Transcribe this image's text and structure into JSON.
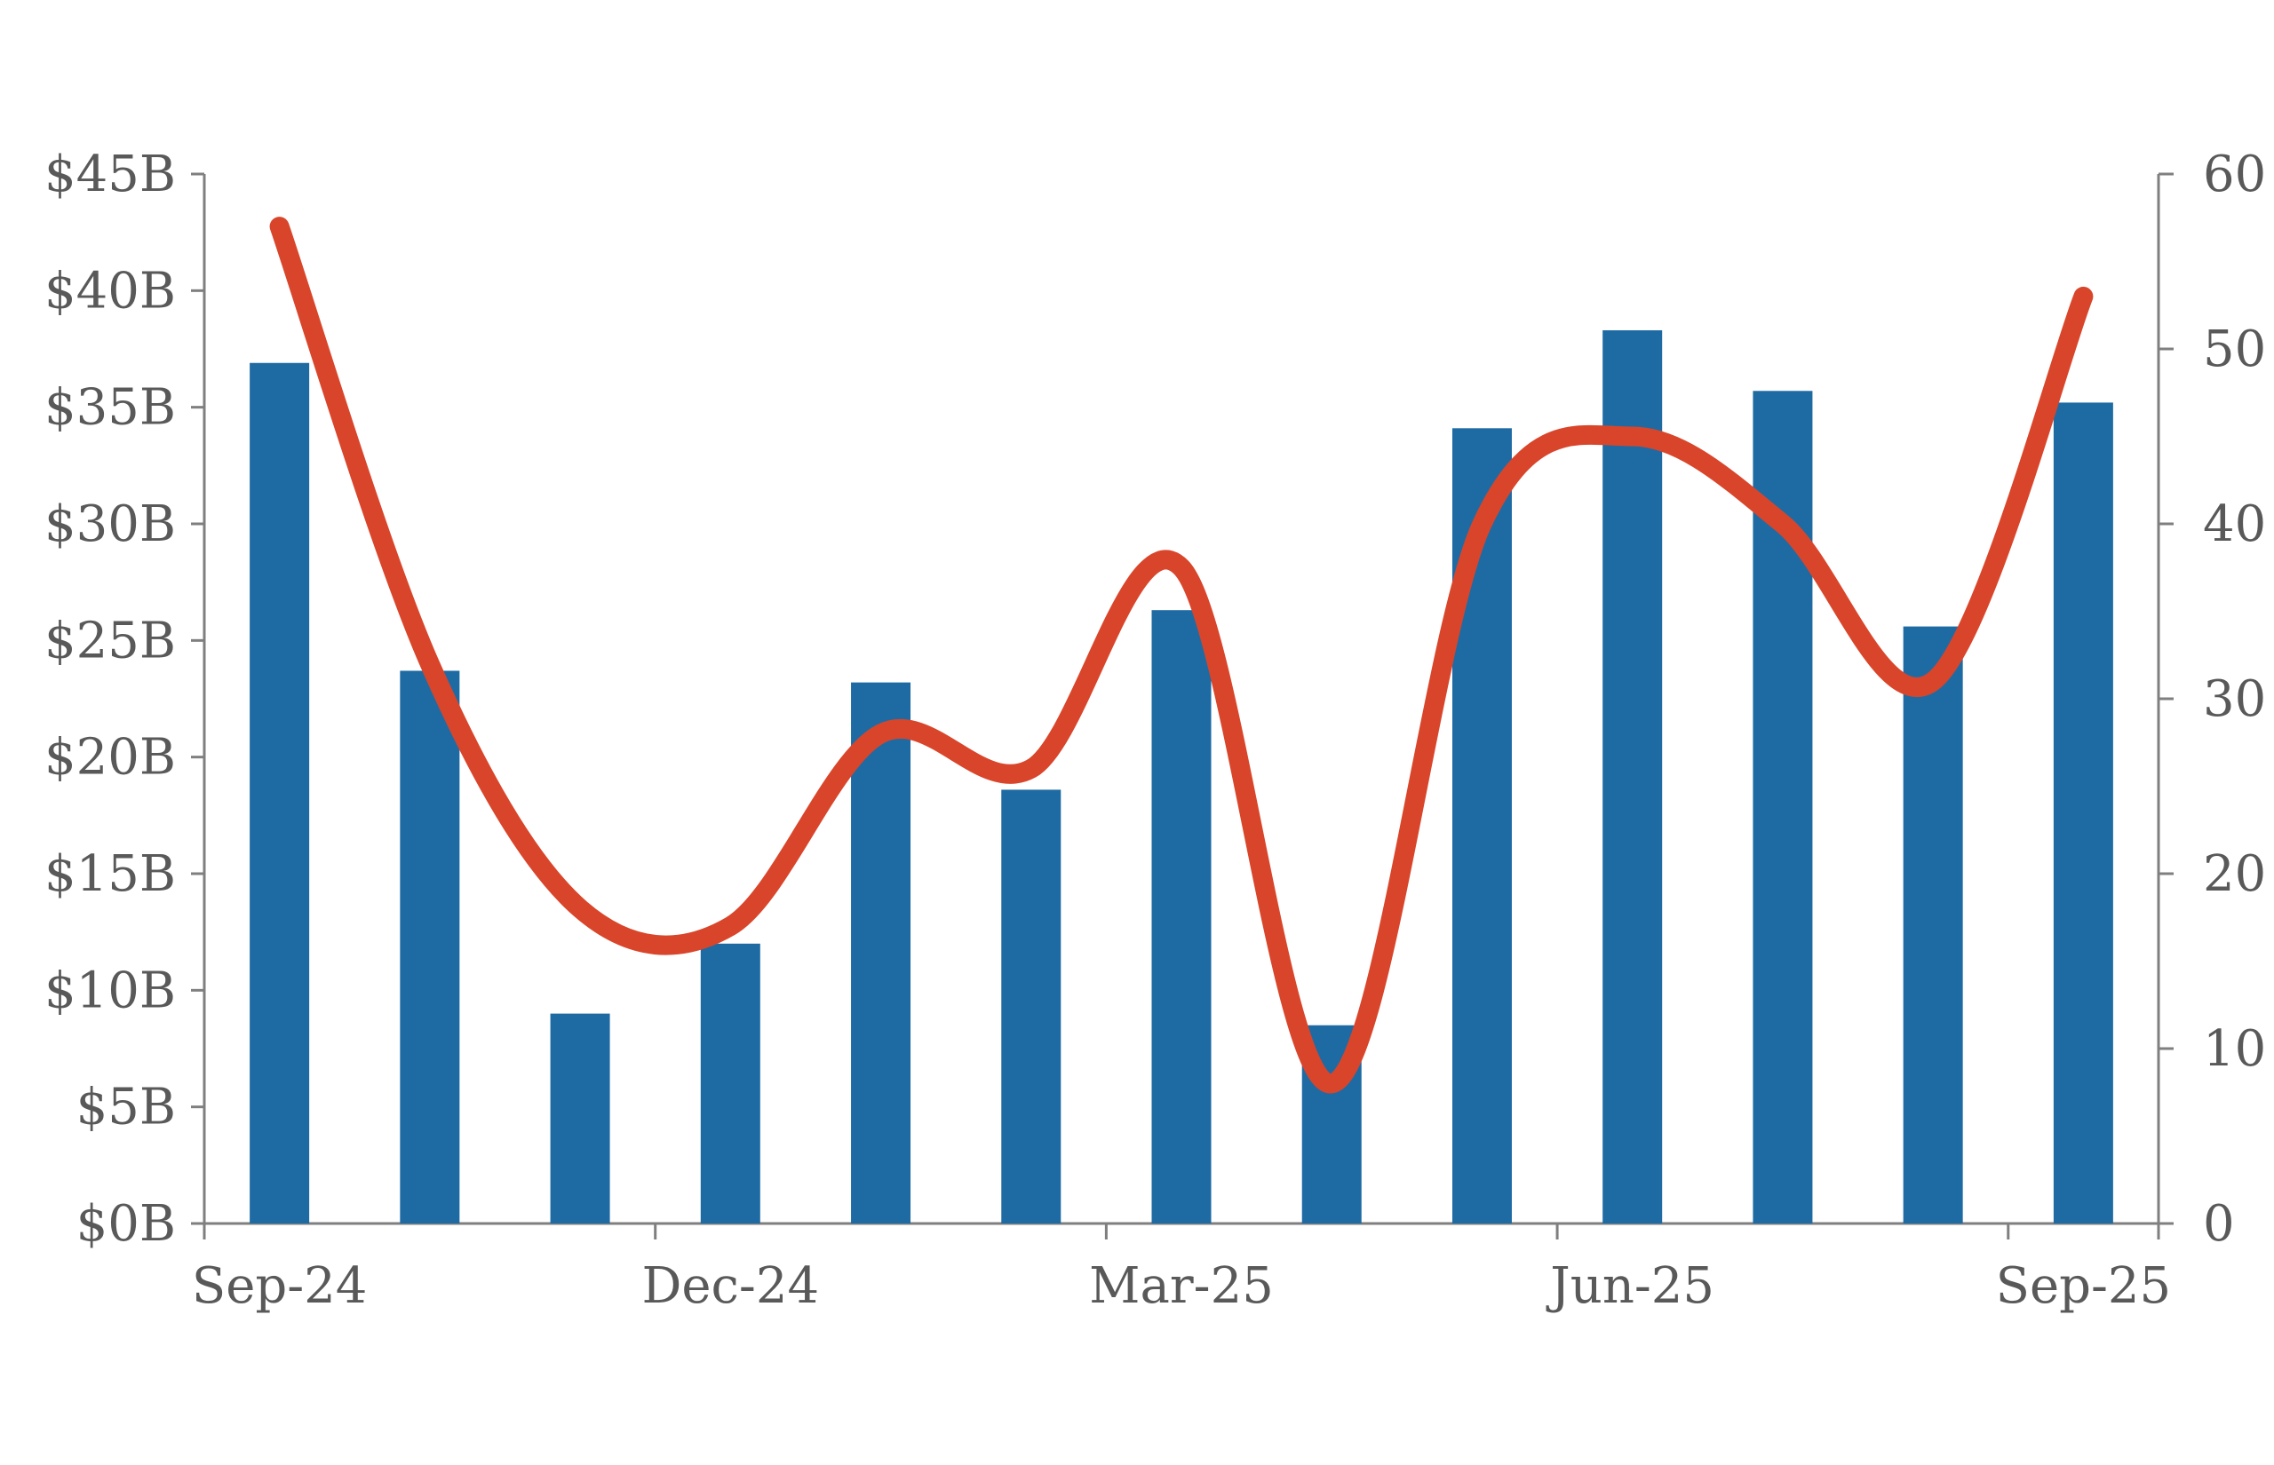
{
  "page": {
    "background_color": "#ffffff"
  },
  "chart_data": {
    "type": "combo",
    "title": "",
    "legend": "none",
    "grid": false,
    "categories": [
      "Sep-24",
      "Oct-24",
      "Nov-24",
      "Dec-24",
      "Jan-25",
      "Feb-25",
      "Mar-25",
      "Apr-25",
      "May-25",
      "Jun-25",
      "Jul-25",
      "Aug-25",
      "Sep-25"
    ],
    "series": [
      {
        "name": "monthly-bars",
        "type": "bar",
        "axis": "left",
        "color": "#1E6BA4",
        "values": [
          36.9,
          23.7,
          9.0,
          12.0,
          23.2,
          18.6,
          26.3,
          8.5,
          34.1,
          38.3,
          35.7,
          25.6,
          35.2
        ]
      },
      {
        "name": "smooth-line",
        "type": "line",
        "axis": "right",
        "color": "#D9452A",
        "values": [
          57,
          32,
          18,
          17,
          28,
          26,
          37.5,
          8,
          40,
          45,
          40,
          31,
          53
        ]
      }
    ],
    "left_axis": {
      "min": 0,
      "max": 45,
      "step": 5,
      "tick_labels": [
        "$0B",
        "$5B",
        "$10B",
        "$15B",
        "$20B",
        "$25B",
        "$30B",
        "$35B",
        "$40B",
        "$45B"
      ]
    },
    "right_axis": {
      "min": 0,
      "max": 60,
      "step": 10,
      "tick_labels": [
        "0",
        "10",
        "20",
        "30",
        "40",
        "50",
        "60"
      ]
    },
    "x_axis": {
      "visible_labels": [
        "Sep-24",
        "Dec-24",
        "Mar-25",
        "Jun-25",
        "Sep-25"
      ],
      "label_interval_months": 3
    }
  },
  "style": {
    "axis_line_color": "#7F7F7F",
    "tick_text_color": "#595959",
    "bar_color": "#1E6BA4",
    "line_color": "#D9452A"
  }
}
